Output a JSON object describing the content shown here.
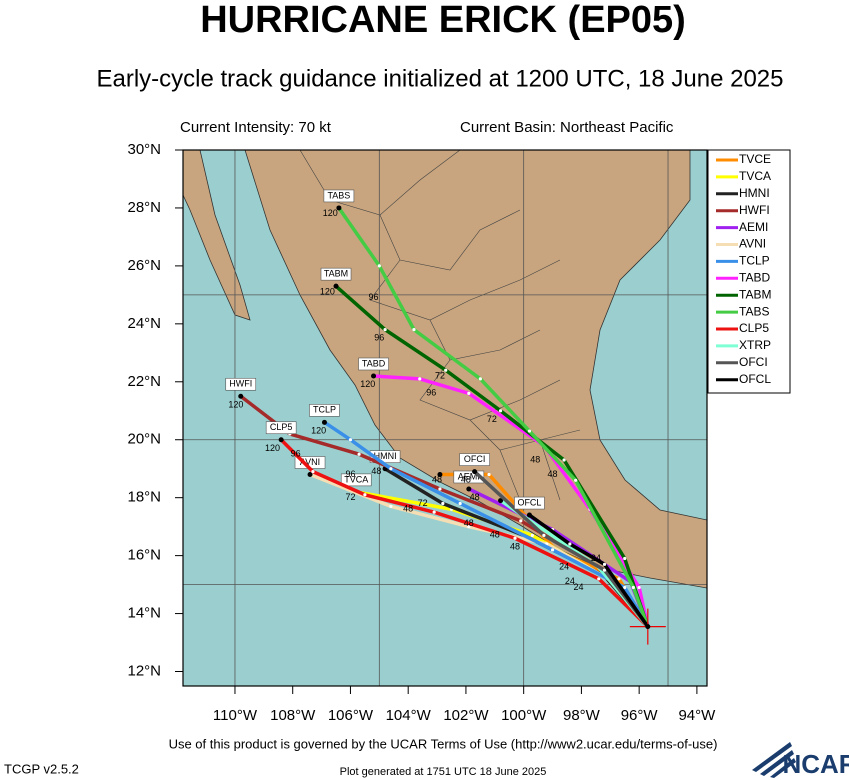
{
  "chart_data": {
    "type": "track",
    "title": "HURRICANE ERICK (EP05)",
    "subtitle": "Early-cycle track guidance initialized at 1200 UTC, 18 June 2025",
    "intensity": "Current Intensity: 70 kt",
    "basin": "Current Basin: Northeast Pacific",
    "terms": "Use of this product is governed by the UCAR Terms of Use (http://www2.ucar.edu/terms-of-use)",
    "version": "TCGP v2.5.2",
    "generated": "Plot generated at 1751 UTC   18 June 2025",
    "logo": "NCAR",
    "xlim": [
      -111.8,
      -93.65
    ],
    "ylim": [
      11.5,
      30
    ],
    "xticks": [
      {
        "value": -110,
        "label": "110°W"
      },
      {
        "value": -108,
        "label": "108°W"
      },
      {
        "value": -106,
        "label": "106°W"
      },
      {
        "value": -104,
        "label": "104°W"
      },
      {
        "value": -102,
        "label": "102°W"
      },
      {
        "value": -100,
        "label": "100°W"
      },
      {
        "value": -98,
        "label": "98°W"
      },
      {
        "value": -96,
        "label": "96°W"
      },
      {
        "value": -94,
        "label": "94°W"
      }
    ],
    "yticks": [
      {
        "value": 12,
        "label": "12°N"
      },
      {
        "value": 14,
        "label": "14°N"
      },
      {
        "value": 16,
        "label": "16°N"
      },
      {
        "value": 18,
        "label": "18°N"
      },
      {
        "value": 20,
        "label": "20°N"
      },
      {
        "value": 22,
        "label": "22°N"
      },
      {
        "value": 24,
        "label": "24°N"
      },
      {
        "value": 26,
        "label": "26°N"
      },
      {
        "value": 28,
        "label": "28°N"
      },
      {
        "value": 30,
        "label": "30°N"
      }
    ],
    "grid_lon": [
      -110,
      -105,
      -100,
      -95
    ],
    "grid_lat": [
      15,
      20,
      25
    ],
    "start": {
      "lon": -95.7,
      "lat": 13.55
    },
    "series": [
      {
        "name": "TVCE",
        "color": "#ff8c00",
        "lon": [
          -95.7,
          -96.7,
          -98.9,
          -101.2,
          -102.9
        ],
        "lat": [
          13.55,
          15.2,
          16.2,
          18.8,
          18.8
        ],
        "box": false
      },
      {
        "name": "TVCA",
        "color": "#ffff00",
        "lon": [
          -95.7,
          -96.9,
          -99.7,
          -102.5,
          -105.8
        ],
        "lat": [
          13.55,
          15.1,
          16.7,
          17.6,
          18.2
        ],
        "box": true
      },
      {
        "name": "HMNI",
        "color": "#222222",
        "lon": [
          -95.7,
          -97.2,
          -100.0,
          -102.8,
          -104.8
        ],
        "lat": [
          13.55,
          15.3,
          16.7,
          17.8,
          19.0
        ],
        "box": true
      },
      {
        "name": "HWFI",
        "color": "#a52a2a",
        "lon": [
          -95.7,
          -97.2,
          -100.1,
          -102.9,
          -105.7,
          -108.1,
          -109.8
        ],
        "lat": [
          13.55,
          15.5,
          17.2,
          18.3,
          19.5,
          20.2,
          21.5
        ],
        "box": true
      },
      {
        "name": "AEMI",
        "color": "#a020f0",
        "lon": [
          -95.7,
          -96.3,
          -99.0,
          -101.9
        ],
        "lat": [
          13.55,
          15.1,
          16.9,
          18.3
        ],
        "box": true
      },
      {
        "name": "AVNI",
        "color": "#f5deb3",
        "lon": [
          -95.7,
          -96.9,
          -99.2,
          -101.9,
          -104.6,
          -107.4
        ],
        "lat": [
          13.55,
          15.1,
          16.4,
          17.0,
          17.7,
          18.8
        ],
        "box": true
      },
      {
        "name": "TCLP",
        "color": "#3a8fe8",
        "lon": [
          -95.7,
          -96.5,
          -99.0,
          -102.2,
          -104.6,
          -106.0,
          -106.9
        ],
        "lat": [
          13.55,
          14.9,
          16.2,
          17.8,
          19.0,
          20.0,
          20.6
        ],
        "box": true
      },
      {
        "name": "TABD",
        "color": "#ff22ff",
        "lon": [
          -95.7,
          -96.0,
          -97.7,
          -99.3,
          -101.9,
          -103.6,
          -105.2
        ],
        "lat": [
          13.55,
          14.9,
          17.6,
          19.8,
          21.6,
          22.1,
          22.2
        ],
        "box": true
      },
      {
        "name": "TABM",
        "color": "#006400",
        "lon": [
          -95.7,
          -96.5,
          -98.6,
          -100.8,
          -102.7,
          -104.8,
          -106.5
        ],
        "lat": [
          13.55,
          15.9,
          19.3,
          21.0,
          22.4,
          23.8,
          25.3
        ],
        "box": true
      },
      {
        "name": "TABS",
        "color": "#44cc44",
        "lon": [
          -95.7,
          -96.2,
          -98.2,
          -99.8,
          -101.5,
          -103.8,
          -105.0,
          -106.4
        ],
        "lat": [
          13.55,
          14.9,
          18.6,
          20.3,
          22.1,
          23.8,
          26.0,
          28.0
        ],
        "box": true
      },
      {
        "name": "CLP5",
        "color": "#ee1111",
        "lon": [
          -95.7,
          -97.4,
          -100.3,
          -103.1,
          -105.5,
          -107.3,
          -108.4
        ],
        "lat": [
          13.55,
          15.2,
          16.6,
          17.5,
          18.1,
          18.9,
          20.0
        ],
        "box": true
      },
      {
        "name": "XTRP",
        "color": "#7fffd4",
        "lon": [
          -95.7,
          -97.4,
          -100.8
        ],
        "lat": [
          13.55,
          15.6,
          17.9
        ],
        "box": false
      },
      {
        "name": "OFCI",
        "color": "#555555",
        "lon": [
          -95.7,
          -97.2,
          -99.3,
          -101.7
        ],
        "lat": [
          13.55,
          15.5,
          16.7,
          18.9
        ],
        "box": true
      },
      {
        "name": "OFCL",
        "color": "#000000",
        "lon": [
          -95.7,
          -97.2,
          -98.4,
          -99.8
        ],
        "lat": [
          13.55,
          15.7,
          16.4,
          17.4
        ],
        "box": true
      }
    ],
    "hour_labels": [
      {
        "hour": 120,
        "lon": -106.7,
        "lat": 27.8
      },
      {
        "hour": 96,
        "lon": -105.2,
        "lat": 24.9
      },
      {
        "hour": 120,
        "lon": -106.8,
        "lat": 25.1
      },
      {
        "hour": 96,
        "lon": -105.0,
        "lat": 23.5
      },
      {
        "hour": 120,
        "lon": -105.4,
        "lat": 21.9
      },
      {
        "hour": 96,
        "lon": -103.2,
        "lat": 21.6
      },
      {
        "hour": 72,
        "lon": -102.9,
        "lat": 22.2
      },
      {
        "hour": 72,
        "lon": -101.1,
        "lat": 20.7
      },
      {
        "hour": 120,
        "lon": -109.97,
        "lat": 21.2
      },
      {
        "hour": 120,
        "lon": -107.1,
        "lat": 20.3
      },
      {
        "hour": 120,
        "lon": -108.7,
        "lat": 19.7
      },
      {
        "hour": 96,
        "lon": -107.9,
        "lat": 19.5
      },
      {
        "hour": 96,
        "lon": -106.0,
        "lat": 18.8
      },
      {
        "hour": 48,
        "lon": -105.1,
        "lat": 18.9
      },
      {
        "hour": 72,
        "lon": -106.0,
        "lat": 18.0
      },
      {
        "hour": 48,
        "lon": -103.0,
        "lat": 18.6
      },
      {
        "hour": 72,
        "lon": -103.5,
        "lat": 17.8
      },
      {
        "hour": 48,
        "lon": -104.0,
        "lat": 17.6
      },
      {
        "hour": 48,
        "lon": -101.9,
        "lat": 17.1
      },
      {
        "hour": 48,
        "lon": -101.0,
        "lat": 16.7
      },
      {
        "hour": 48,
        "lon": -100.3,
        "lat": 16.3
      },
      {
        "hour": 48,
        "lon": -102.0,
        "lat": 18.6
      },
      {
        "hour": 48,
        "lon": -101.7,
        "lat": 18.0
      },
      {
        "hour": 48,
        "lon": -99.6,
        "lat": 19.3
      },
      {
        "hour": 48,
        "lon": -99.0,
        "lat": 18.8
      },
      {
        "hour": 24,
        "lon": -98.6,
        "lat": 15.6
      },
      {
        "hour": 24,
        "lon": -97.5,
        "lat": 15.9
      },
      {
        "hour": 24,
        "lon": -98.4,
        "lat": 15.1
      },
      {
        "hour": 24,
        "lon": -98.1,
        "lat": 14.9
      }
    ]
  }
}
